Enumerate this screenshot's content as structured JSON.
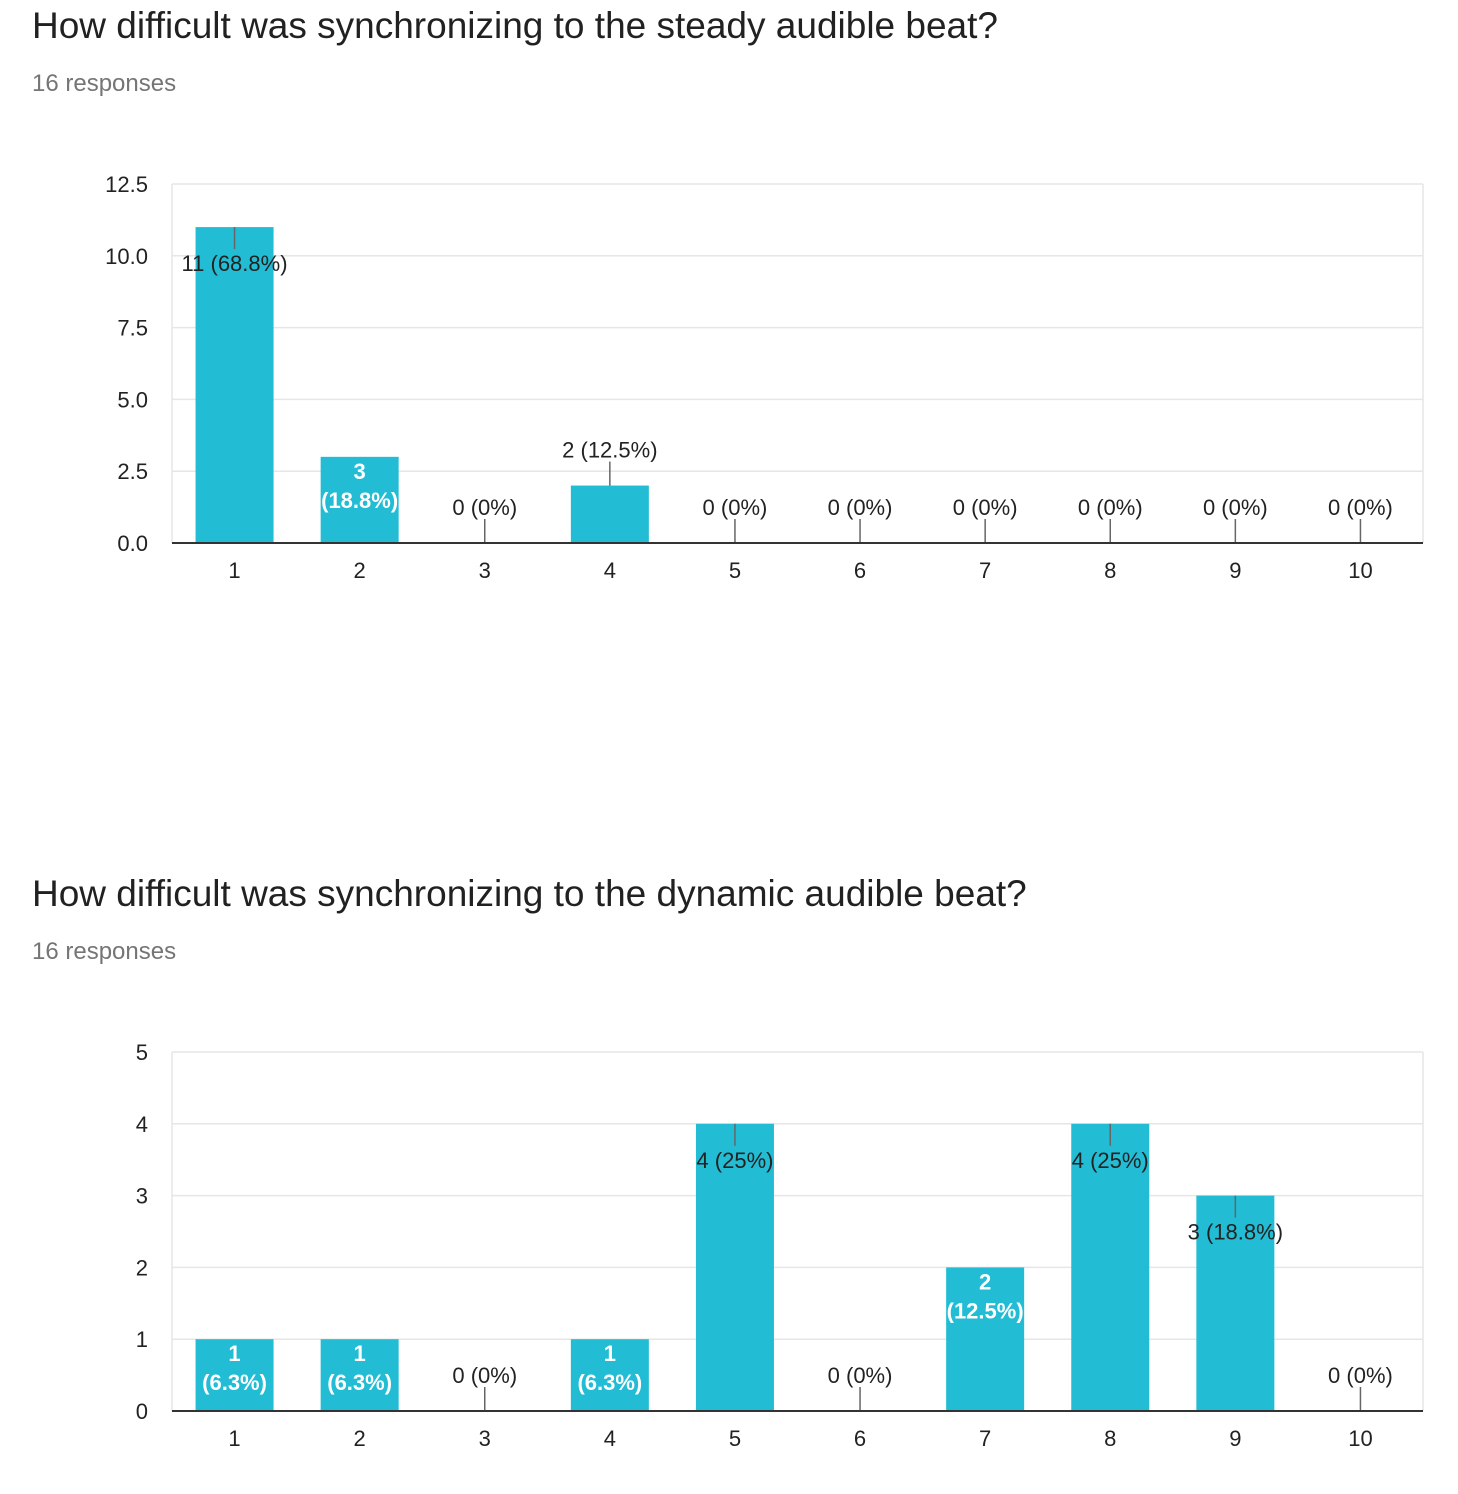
{
  "questions": [
    {
      "title": "How difficult was synchronizing to the steady audible beat?",
      "responses": "16 responses"
    },
    {
      "title": "How difficult was synchronizing to the dynamic audible beat?",
      "responses": "16 responses"
    }
  ],
  "colors": {
    "bar": "#22bcd4",
    "grid": "#e6e6e6",
    "axis": "#333333",
    "label": "#222222",
    "inner_label": "#ffffff"
  },
  "chart_data": [
    {
      "type": "bar",
      "title": "How difficult was synchronizing to the steady audible beat?",
      "categories": [
        "1",
        "2",
        "3",
        "4",
        "5",
        "6",
        "7",
        "8",
        "9",
        "10"
      ],
      "values": [
        11,
        3,
        0,
        2,
        0,
        0,
        0,
        0,
        0,
        0
      ],
      "data_labels": [
        "11 (68.8%)",
        "3 (18.8%)",
        "0 (0%)",
        "2 (12.5%)",
        "0 (0%)",
        "0 (0%)",
        "0 (0%)",
        "0 (0%)",
        "0 (0%)",
        "0 (0%)"
      ],
      "y_ticks": [
        "0.0",
        "2.5",
        "5.0",
        "7.5",
        "10.0",
        "12.5"
      ],
      "ylim": [
        0,
        12.5
      ],
      "grid": true,
      "legend": "none"
    },
    {
      "type": "bar",
      "title": "How difficult was synchronizing to the dynamic audible beat?",
      "categories": [
        "1",
        "2",
        "3",
        "4",
        "5",
        "6",
        "7",
        "8",
        "9",
        "10"
      ],
      "values": [
        1,
        1,
        0,
        1,
        4,
        0,
        2,
        4,
        3,
        0
      ],
      "data_labels": [
        "1 (6.3%)",
        "1 (6.3%)",
        "0 (0%)",
        "1 (6.3%)",
        "4 (25%)",
        "0 (0%)",
        "2 (12.5%)",
        "4 (25%)",
        "3 (18.8%)",
        "0 (0%)"
      ],
      "y_ticks": [
        "0",
        "1",
        "2",
        "3",
        "4",
        "5"
      ],
      "ylim": [
        0,
        5
      ],
      "grid": true,
      "legend": "none"
    }
  ]
}
